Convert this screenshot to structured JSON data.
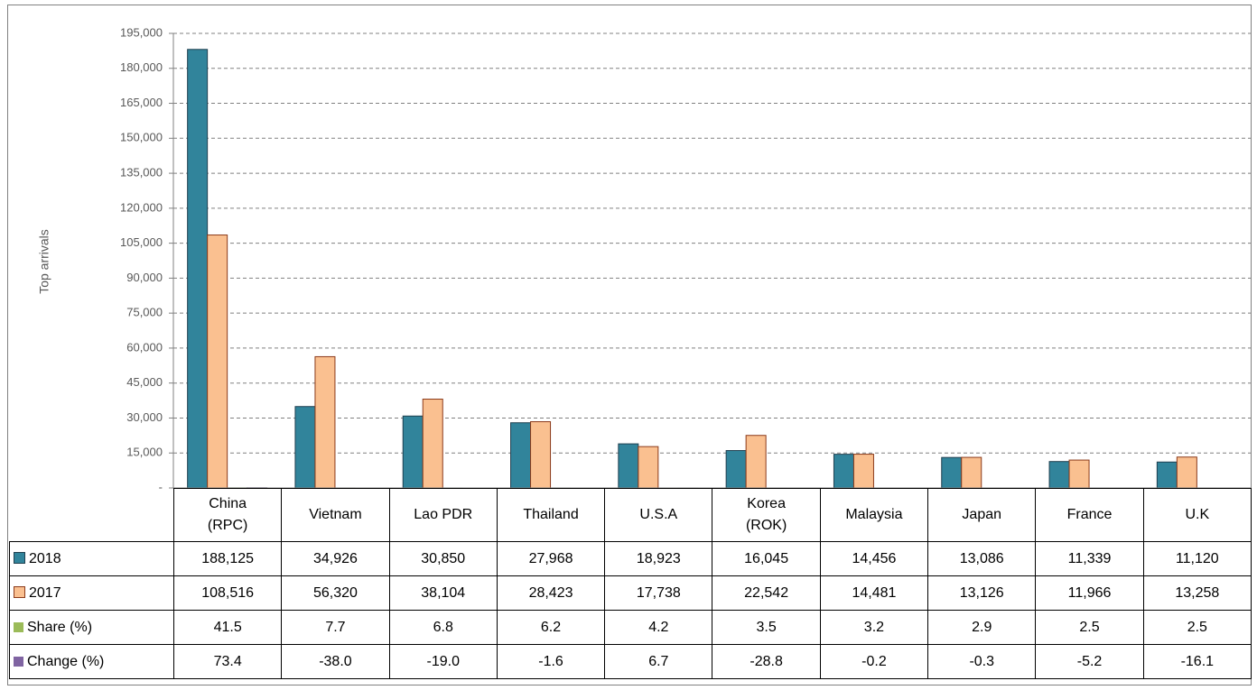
{
  "chart_data": {
    "type": "bar",
    "y_label": "Top arrivals",
    "categories": [
      "China (RPC)",
      "Vietnam",
      "Lao PDR",
      "Thailand",
      "U.S.A",
      "Korea (ROK)",
      "Malaysia",
      "Japan",
      "France",
      "U.K"
    ],
    "series": [
      {
        "name": "2018",
        "color": "#31849b",
        "values": [
          188125,
          34926,
          30850,
          27968,
          18923,
          16045,
          14456,
          13086,
          11339,
          11120
        ],
        "value_labels": [
          "188,125",
          "34,926",
          "30,850",
          "27,968",
          "18,923",
          "16,045",
          "14,456",
          "13,086",
          "11,339",
          "11,120"
        ]
      },
      {
        "name": "2017",
        "color": "#fac090",
        "values": [
          108516,
          56320,
          38104,
          28423,
          17738,
          22542,
          14481,
          13126,
          11966,
          13258
        ],
        "value_labels": [
          "108,516",
          "56,320",
          "38,104",
          "28,423",
          "17,738",
          "22,542",
          "14,481",
          "13,126",
          "11,966",
          "13,258"
        ]
      },
      {
        "name": "Share (%)",
        "color": "#9bbb59",
        "values": [
          41.5,
          7.7,
          6.8,
          6.2,
          4.2,
          3.5,
          3.2,
          2.9,
          2.5,
          2.5
        ],
        "value_labels": [
          "41.5",
          "7.7",
          "6.8",
          "6.2",
          "4.2",
          "3.5",
          "3.2",
          "2.9",
          "2.5",
          "2.5"
        ]
      },
      {
        "name": "Change (%)",
        "color": "#8064a2",
        "values": [
          73.4,
          -38.0,
          -19.0,
          -1.6,
          6.7,
          -28.8,
          -0.2,
          -0.3,
          -5.2,
          -16.1
        ],
        "value_labels": [
          "73.4",
          "-38.0",
          "-19.0",
          "-1.6",
          "6.7",
          "-28.8",
          "-0.2",
          "-0.3",
          "-5.2",
          "-16.1"
        ]
      }
    ],
    "ylim": [
      0,
      195000
    ],
    "yticks": [
      {
        "value": 0,
        "label": "-"
      },
      {
        "value": 15000,
        "label": "15,000"
      },
      {
        "value": 30000,
        "label": "30,000"
      },
      {
        "value": 45000,
        "label": "45,000"
      },
      {
        "value": 60000,
        "label": "60,000"
      },
      {
        "value": 75000,
        "label": "75,000"
      },
      {
        "value": 90000,
        "label": "90,000"
      },
      {
        "value": 105000,
        "label": "105,000"
      },
      {
        "value": 120000,
        "label": "120,000"
      },
      {
        "value": 135000,
        "label": "135,000"
      },
      {
        "value": 150000,
        "label": "150,000"
      },
      {
        "value": 165000,
        "label": "165,000"
      },
      {
        "value": 180000,
        "label": "180,000"
      },
      {
        "value": 195000,
        "label": "195,000"
      }
    ],
    "grid": true
  }
}
